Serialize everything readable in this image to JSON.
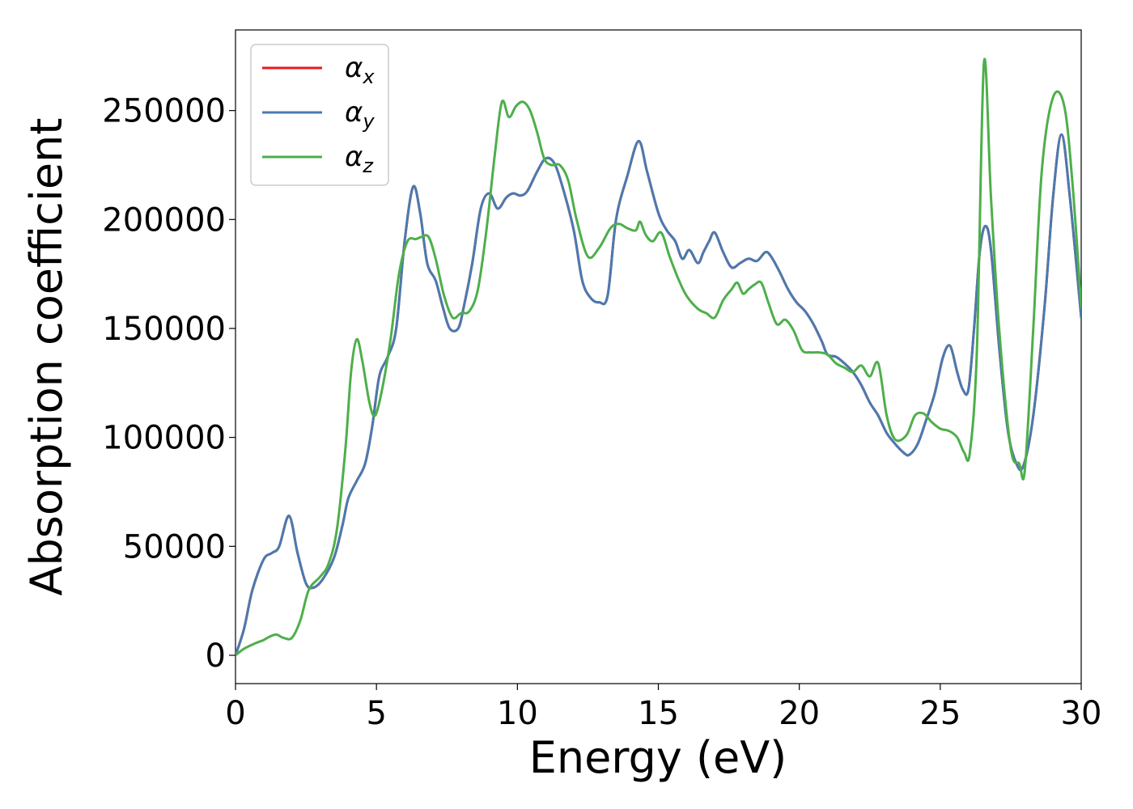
{
  "chart_data": {
    "type": "line",
    "title": "",
    "xlabel": "Energy (eV)",
    "ylabel": "Absorption coefficient",
    "xlim": [
      0,
      30
    ],
    "ylim": [
      -13000,
      287000
    ],
    "xticks": [
      0,
      5,
      10,
      15,
      20,
      25,
      30
    ],
    "yticks": [
      0,
      50000,
      100000,
      150000,
      200000,
      250000
    ],
    "xtick_labels": [
      "0",
      "5",
      "10",
      "15",
      "20",
      "25",
      "30"
    ],
    "ytick_labels": [
      "0",
      "50000",
      "100000",
      "150000",
      "200000",
      "250000"
    ],
    "grid": false,
    "legend": {
      "position": "top-left"
    },
    "series": [
      {
        "name": "α_x",
        "label_main": "α",
        "label_sub": "x",
        "color": "#e41a1c",
        "x": [
          0,
          0.3,
          0.6,
          1.0,
          1.3,
          1.55,
          1.9,
          2.2,
          2.5,
          2.75,
          3.1,
          3.5,
          3.8,
          4.0,
          4.3,
          4.6,
          4.85,
          5.1,
          5.4,
          5.7,
          6.0,
          6.3,
          6.55,
          6.8,
          7.1,
          7.35,
          7.6,
          7.9,
          8.1,
          8.4,
          8.7,
          9.0,
          9.3,
          9.6,
          9.85,
          10.1,
          10.35,
          10.7,
          11.0,
          11.3,
          11.6,
          12.0,
          12.3,
          12.6,
          12.9,
          13.2,
          13.5,
          13.9,
          14.3,
          14.6,
          15.0,
          15.3,
          15.6,
          15.85,
          16.1,
          16.4,
          16.6,
          16.8,
          17.0,
          17.3,
          17.6,
          17.9,
          18.2,
          18.5,
          18.8,
          19.0,
          19.3,
          19.6,
          19.9,
          20.2,
          20.5,
          20.8,
          21.0,
          21.3,
          21.6,
          21.9,
          22.2,
          22.5,
          22.8,
          23.1,
          23.4,
          23.7,
          23.9,
          24.2,
          24.5,
          24.8,
          25.1,
          25.35,
          25.6,
          25.8,
          26.0,
          26.2,
          26.4,
          26.6,
          26.8,
          27.1,
          27.4,
          27.7,
          27.95,
          28.3,
          28.7,
          29.0,
          29.3,
          29.6,
          30.0
        ],
        "y": [
          0,
          12000,
          30000,
          44000,
          47000,
          50000,
          64000,
          47000,
          33000,
          31000,
          35000,
          45000,
          60000,
          72000,
          80000,
          88000,
          105000,
          128000,
          137000,
          150000,
          190000,
          215000,
          203000,
          180000,
          172000,
          160000,
          150000,
          150000,
          160000,
          180000,
          205000,
          212000,
          205000,
          210000,
          212000,
          211000,
          213000,
          222000,
          228000,
          226000,
          215000,
          195000,
          172000,
          164000,
          162000,
          165000,
          200000,
          220000,
          236000,
          222000,
          203000,
          195000,
          190000,
          182000,
          186000,
          180000,
          185000,
          190000,
          194000,
          185000,
          178000,
          180000,
          182000,
          181000,
          185000,
          183000,
          176000,
          168000,
          162000,
          158000,
          152000,
          144000,
          138000,
          137000,
          134000,
          130000,
          124000,
          116000,
          110000,
          102000,
          97000,
          93000,
          92000,
          97000,
          108000,
          120000,
          137000,
          142000,
          130000,
          122000,
          122000,
          150000,
          185000,
          197000,
          186000,
          140000,
          103000,
          88000,
          87000,
          110000,
          160000,
          210000,
          239000,
          210000,
          155000
        ]
      },
      {
        "name": "α_y",
        "label_main": "α",
        "label_sub": "y",
        "color": "#4a7ab0",
        "x": [
          0,
          0.3,
          0.6,
          1.0,
          1.3,
          1.55,
          1.9,
          2.2,
          2.5,
          2.75,
          3.1,
          3.5,
          3.8,
          4.0,
          4.3,
          4.6,
          4.85,
          5.1,
          5.4,
          5.7,
          6.0,
          6.3,
          6.55,
          6.8,
          7.1,
          7.35,
          7.6,
          7.9,
          8.1,
          8.4,
          8.7,
          9.0,
          9.3,
          9.6,
          9.85,
          10.1,
          10.35,
          10.7,
          11.0,
          11.3,
          11.6,
          12.0,
          12.3,
          12.6,
          12.9,
          13.2,
          13.5,
          13.9,
          14.3,
          14.6,
          15.0,
          15.3,
          15.6,
          15.85,
          16.1,
          16.4,
          16.6,
          16.8,
          17.0,
          17.3,
          17.6,
          17.9,
          18.2,
          18.5,
          18.8,
          19.0,
          19.3,
          19.6,
          19.9,
          20.2,
          20.5,
          20.8,
          21.0,
          21.3,
          21.6,
          21.9,
          22.2,
          22.5,
          22.8,
          23.1,
          23.4,
          23.7,
          23.9,
          24.2,
          24.5,
          24.8,
          25.1,
          25.35,
          25.6,
          25.8,
          26.0,
          26.2,
          26.4,
          26.6,
          26.8,
          27.1,
          27.4,
          27.7,
          27.95,
          28.3,
          28.7,
          29.0,
          29.3,
          29.6,
          30.0
        ],
        "y": [
          0,
          12000,
          30000,
          44000,
          47000,
          50000,
          64000,
          47000,
          33000,
          31000,
          35000,
          45000,
          60000,
          72000,
          80000,
          88000,
          105000,
          128000,
          137000,
          150000,
          190000,
          215000,
          203000,
          180000,
          172000,
          160000,
          150000,
          150000,
          160000,
          180000,
          205000,
          212000,
          205000,
          210000,
          212000,
          211000,
          213000,
          222000,
          228000,
          226000,
          215000,
          195000,
          172000,
          164000,
          162000,
          165000,
          200000,
          220000,
          236000,
          222000,
          203000,
          195000,
          190000,
          182000,
          186000,
          180000,
          185000,
          190000,
          194000,
          185000,
          178000,
          180000,
          182000,
          181000,
          185000,
          183000,
          176000,
          168000,
          162000,
          158000,
          152000,
          144000,
          138000,
          137000,
          134000,
          130000,
          124000,
          116000,
          110000,
          102000,
          97000,
          93000,
          92000,
          97000,
          108000,
          120000,
          137000,
          142000,
          130000,
          122000,
          122000,
          150000,
          185000,
          197000,
          186000,
          140000,
          103000,
          88000,
          87000,
          110000,
          160000,
          210000,
          239000,
          210000,
          155000
        ]
      },
      {
        "name": "α_z",
        "label_main": "α",
        "label_sub": "z",
        "color": "#4daf4a",
        "x": [
          0,
          0.3,
          0.7,
          1.0,
          1.2,
          1.45,
          1.7,
          2.0,
          2.3,
          2.6,
          3.0,
          3.3,
          3.6,
          3.9,
          4.1,
          4.3,
          4.5,
          4.75,
          4.95,
          5.2,
          5.5,
          5.8,
          6.1,
          6.4,
          6.6,
          6.85,
          7.1,
          7.4,
          7.7,
          8.0,
          8.3,
          8.6,
          8.9,
          9.2,
          9.45,
          9.7,
          9.95,
          10.2,
          10.45,
          10.7,
          10.95,
          11.2,
          11.5,
          11.8,
          12.1,
          12.5,
          12.9,
          13.3,
          13.6,
          13.9,
          14.2,
          14.35,
          14.55,
          14.8,
          15.1,
          15.4,
          15.7,
          16.0,
          16.4,
          16.7,
          17.0,
          17.3,
          17.6,
          17.8,
          18.0,
          18.2,
          18.4,
          18.65,
          18.9,
          19.2,
          19.5,
          19.8,
          20.1,
          20.4,
          20.7,
          21.0,
          21.3,
          21.6,
          21.9,
          22.2,
          22.5,
          22.8,
          23.1,
          23.4,
          23.8,
          24.1,
          24.4,
          24.7,
          25.0,
          25.3,
          25.6,
          25.85,
          26.05,
          26.3,
          26.55,
          26.8,
          27.1,
          27.5,
          27.8,
          28.0,
          28.3,
          28.6,
          29.0,
          29.4,
          29.7,
          30.0
        ],
        "y": [
          0,
          3000,
          5500,
          7000,
          8500,
          9500,
          8000,
          8000,
          16000,
          30000,
          36000,
          42000,
          58000,
          95000,
          130000,
          145000,
          135000,
          116000,
          110000,
          122000,
          145000,
          175000,
          190000,
          191000,
          192000,
          192000,
          182000,
          165000,
          155000,
          157000,
          158000,
          168000,
          195000,
          230000,
          254000,
          247000,
          252000,
          254000,
          250000,
          240000,
          228000,
          225000,
          225000,
          218000,
          200000,
          183000,
          187000,
          196000,
          198000,
          196000,
          195000,
          199000,
          193000,
          190000,
          194000,
          183000,
          173000,
          165000,
          159000,
          157000,
          155000,
          163000,
          168000,
          171000,
          166000,
          168000,
          170000,
          171000,
          162000,
          152000,
          154000,
          149000,
          140000,
          139000,
          139000,
          138000,
          134000,
          132000,
          130000,
          133000,
          128000,
          134000,
          110000,
          99000,
          101000,
          110000,
          111000,
          107000,
          104000,
          103000,
          100000,
          93000,
          93000,
          140000,
          272000,
          210000,
          148000,
          95000,
          88000,
          85000,
          150000,
          222000,
          256000,
          252000,
          215000,
          160000
        ]
      }
    ]
  }
}
